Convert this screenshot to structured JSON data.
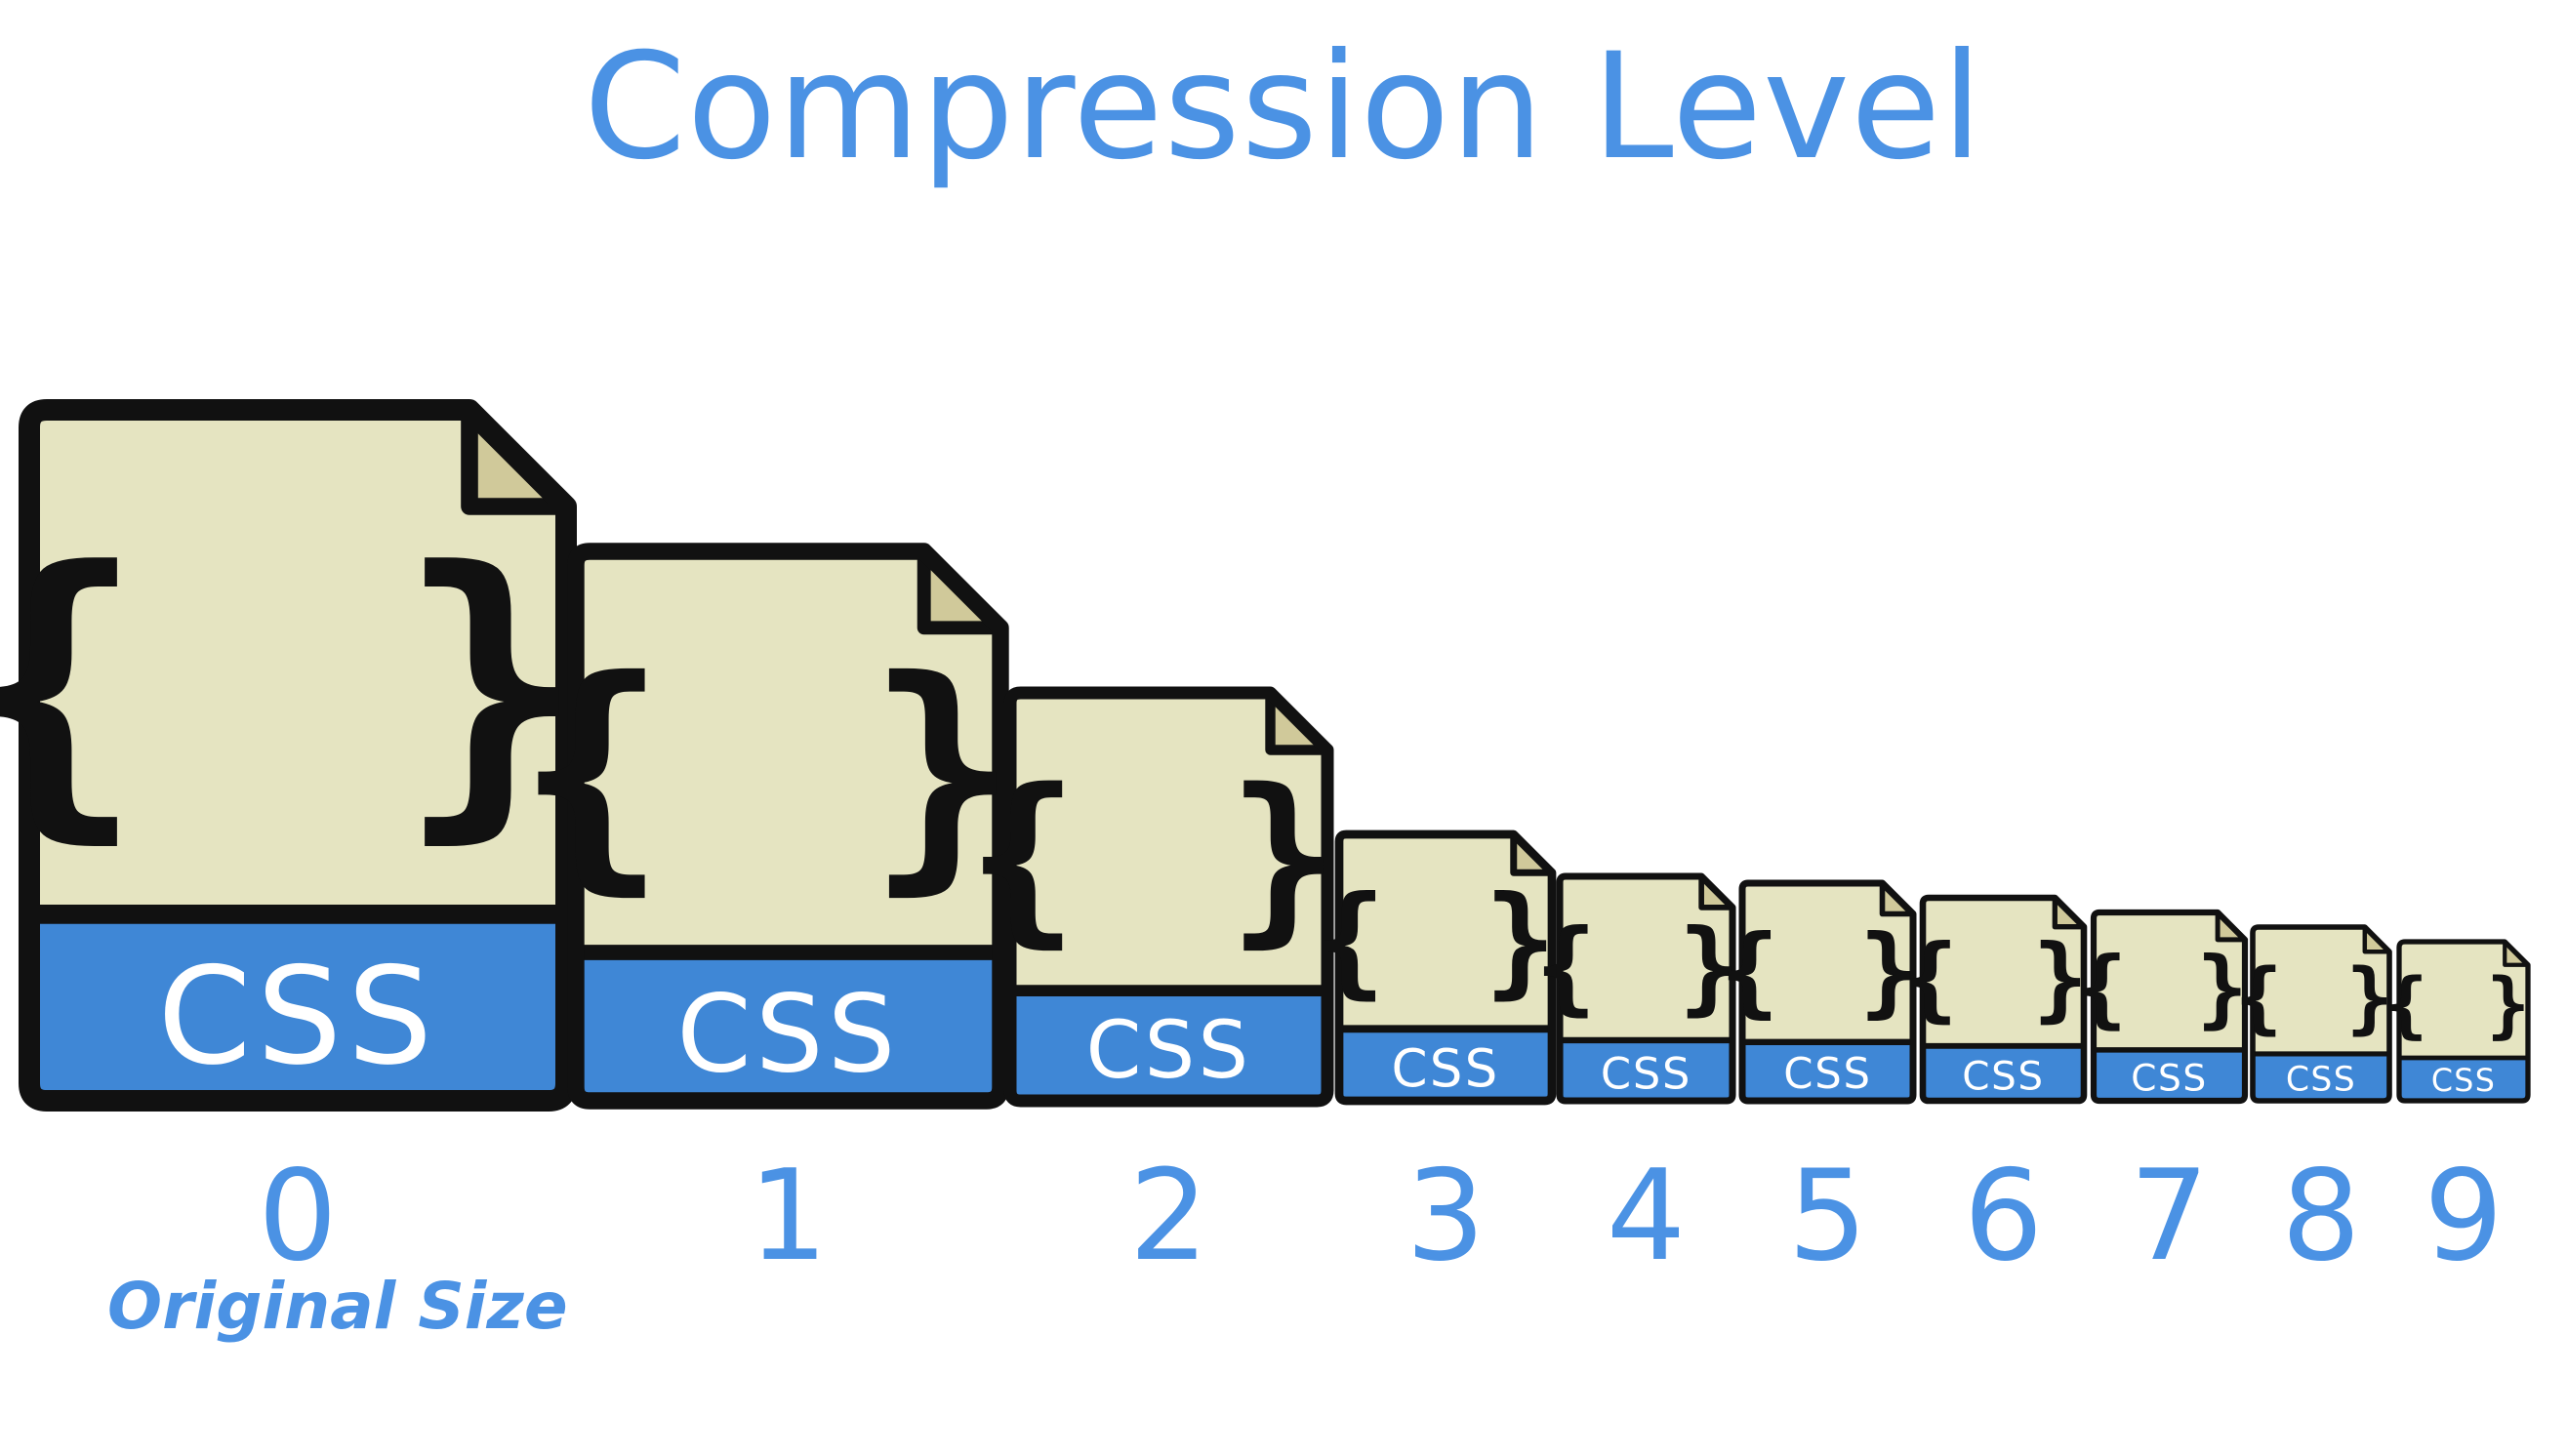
{
  "title": "Compression Level",
  "caption": "Original Size",
  "colors": {
    "accent": "#4b92e4",
    "file_body": "#e5e4c1",
    "file_fold": "#d0c99a",
    "file_band": "#3f87d6",
    "outline": "#111111",
    "band_text": "#ffffff"
  },
  "file_label": "CSS",
  "file_glyph": "{ }",
  "icon": "css-file-icon",
  "levels": [
    {
      "level": "0"
    },
    {
      "level": "1"
    },
    {
      "level": "2"
    },
    {
      "level": "3"
    },
    {
      "level": "4"
    },
    {
      "level": "5"
    },
    {
      "level": "6"
    },
    {
      "level": "7"
    },
    {
      "level": "8"
    },
    {
      "level": "9"
    }
  ]
}
